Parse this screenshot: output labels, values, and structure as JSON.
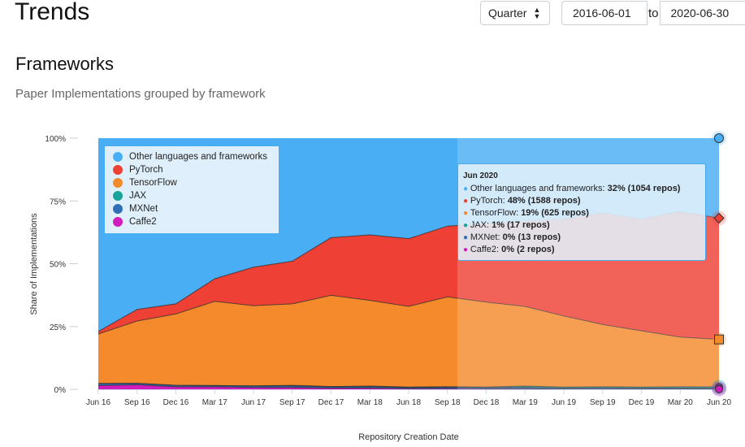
{
  "header": {
    "title": "Trends",
    "period_select": "Quarter",
    "date_from": "2016-06-01",
    "to_label": "to",
    "date_to": "2020-06-30"
  },
  "section": {
    "title": "Frameworks",
    "subtitle": "Paper Implementations grouped by framework"
  },
  "tooltip": {
    "title": "Jun 2020",
    "rows": [
      {
        "label": "Other languages and frameworks:",
        "value": "32% (1054 repos)",
        "color": "#4aaef5"
      },
      {
        "label": "PyTorch:",
        "value": "48% (1588 repos)",
        "color": "#ee4035"
      },
      {
        "label": "TensorFlow:",
        "value": "19% (625 repos)",
        "color": "#f58a2c"
      },
      {
        "label": "JAX:",
        "value": "1% (17 repos)",
        "color": "#1aa39a"
      },
      {
        "label": "MXNet:",
        "value": "0% (13 repos)",
        "color": "#2f6fb5"
      },
      {
        "label": "Caffe2:",
        "value": "0% (2 repos)",
        "color": "#d21bbd"
      }
    ]
  },
  "chart_data": {
    "type": "area",
    "stacked": true,
    "title": "",
    "xlabel": "Repository Creation Date",
    "ylabel": "Share of Implementations",
    "ylim": [
      0,
      100
    ],
    "yticks": [
      "0%",
      "25%",
      "50%",
      "75%",
      "100%"
    ],
    "categories": [
      "Jun 16",
      "Sep 16",
      "Dec 16",
      "Mar 17",
      "Jun 17",
      "Sep 17",
      "Dec 17",
      "Mar 18",
      "Jun 18",
      "Sep 18",
      "Dec 18",
      "Mar 19",
      "Jun 19",
      "Sep 19",
      "Dec 19",
      "Mar 20",
      "Jun 20"
    ],
    "legend_position": "top-left",
    "series": [
      {
        "name": "Caffe2",
        "color": "#d21bbd",
        "values": [
          1.5,
          1.8,
          1.0,
          1.0,
          0.7,
          0.7,
          0.5,
          0.5,
          0.3,
          0.3,
          0.2,
          0.2,
          0.1,
          0.1,
          0.1,
          0.1,
          0.06
        ]
      },
      {
        "name": "MXNet",
        "color": "#2f6fb5",
        "values": [
          0.8,
          0.6,
          0.6,
          0.5,
          0.6,
          0.7,
          0.5,
          0.6,
          0.4,
          0.6,
          0.5,
          0.6,
          0.4,
          0.5,
          0.4,
          0.4,
          0.4
        ]
      },
      {
        "name": "JAX",
        "color": "#1aa39a",
        "values": [
          0,
          0,
          0,
          0,
          0.1,
          0.2,
          0.1,
          0.2,
          0.2,
          0.1,
          0.2,
          0.5,
          0.4,
          0.4,
          0.4,
          0.5,
          0.5
        ]
      },
      {
        "name": "TensorFlow",
        "color": "#f58a2c",
        "values": [
          19.7,
          24.8,
          28.4,
          33.5,
          31.9,
          32.4,
          36.3,
          34.1,
          32.1,
          35.8,
          33.8,
          31.7,
          28.3,
          24.8,
          22.4,
          19.8,
          18.9
        ]
      },
      {
        "name": "PyTorch",
        "color": "#ee4035",
        "values": [
          1.0,
          4.6,
          4.0,
          9.0,
          15.3,
          17.0,
          23.0,
          26.1,
          27.0,
          28.2,
          31.3,
          34.0,
          38.6,
          44.4,
          44.4,
          50.0,
          48.3
        ]
      },
      {
        "name": "Other languages and frameworks",
        "color": "#4aaef5",
        "values": [
          77.0,
          68.2,
          66.0,
          56.0,
          51.4,
          49.0,
          39.6,
          38.5,
          40.0,
          35.0,
          34.0,
          33.0,
          32.2,
          29.8,
          32.3,
          29.2,
          31.84
        ]
      }
    ]
  }
}
